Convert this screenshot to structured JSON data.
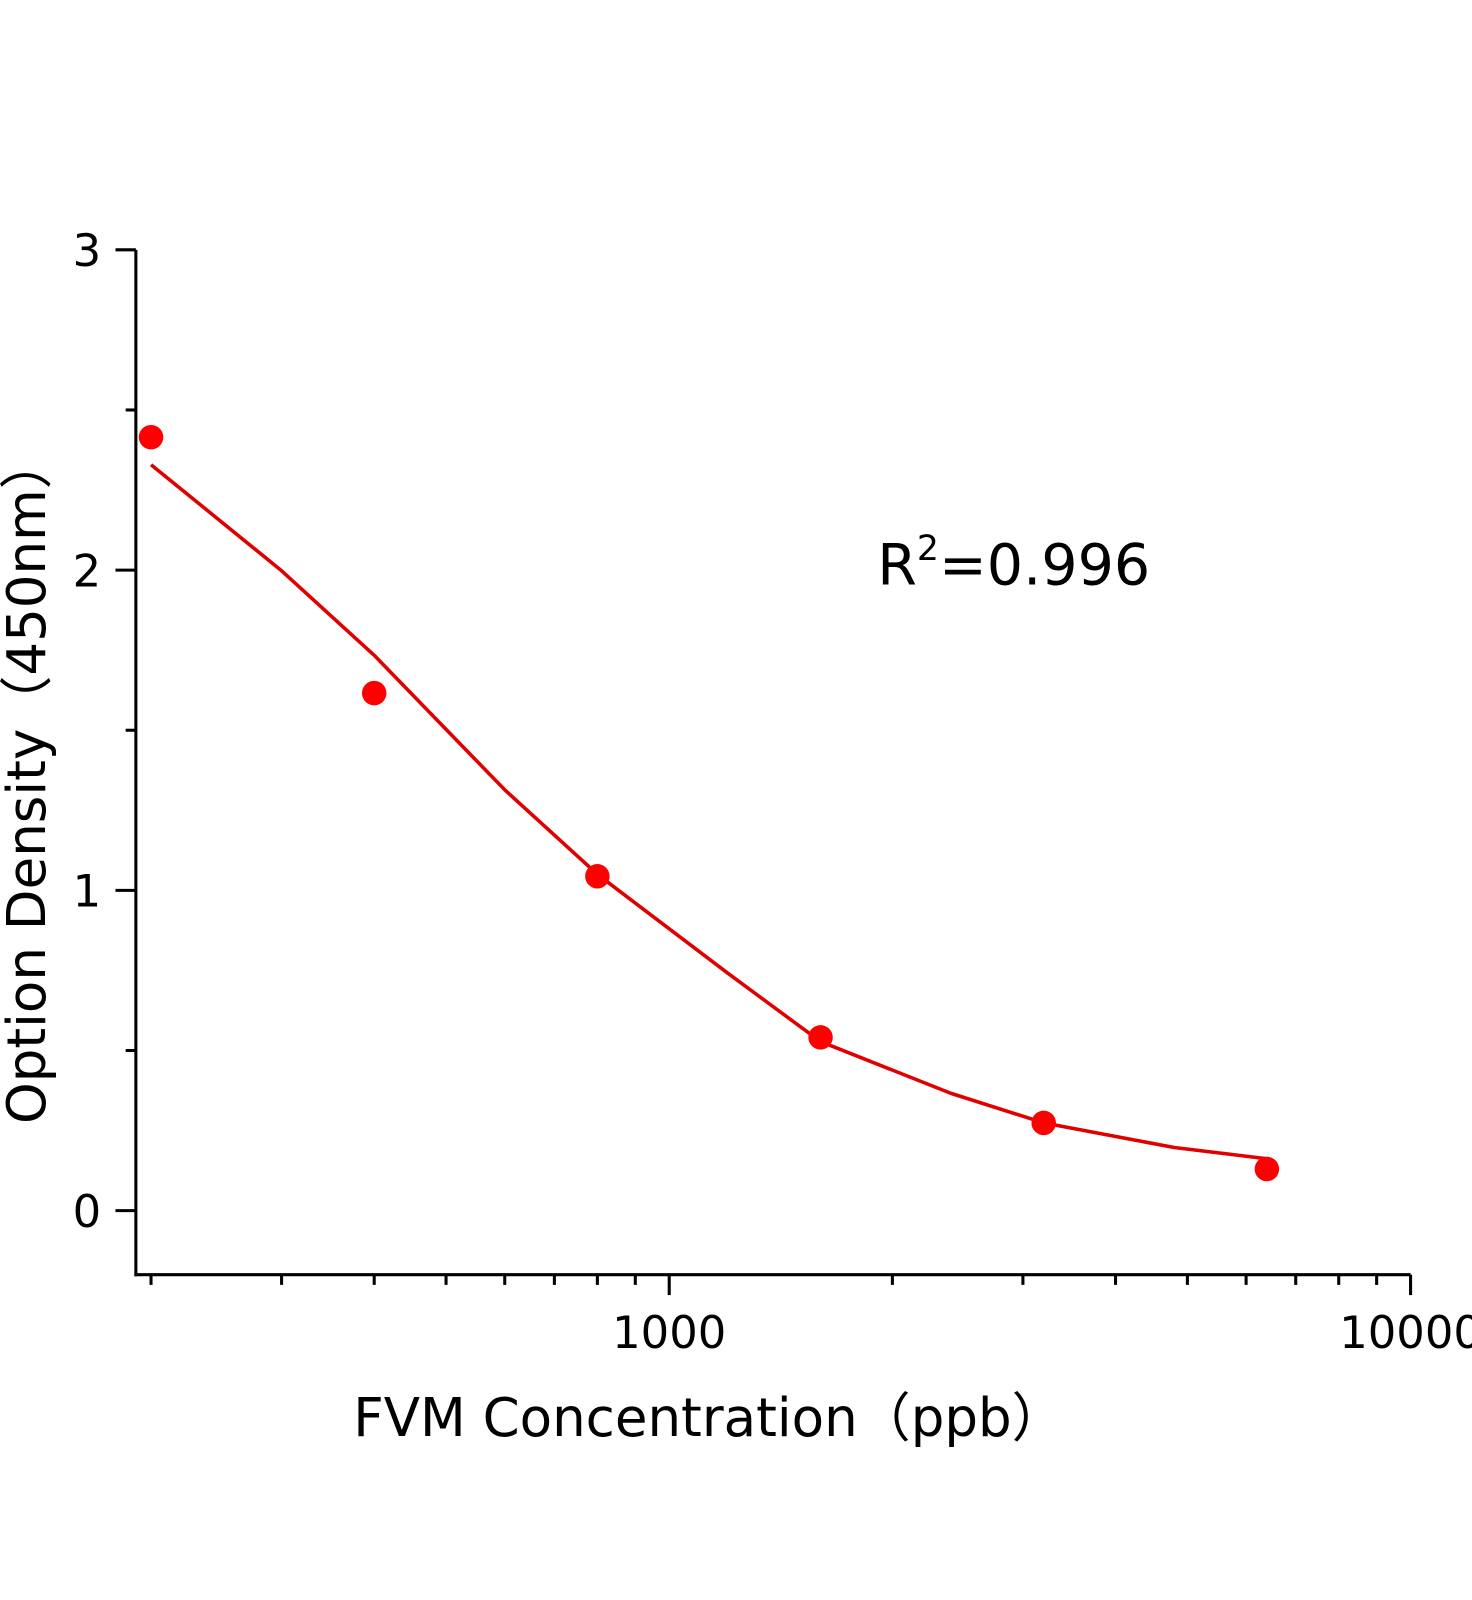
{
  "chart_data": {
    "type": "scatter",
    "xlabel": "FVM Concentration（ppb）",
    "ylabel": "Option Density（450nm）",
    "annotation": {
      "base": "R",
      "superscript": "2",
      "text": "=0.996"
    },
    "xscale": "log",
    "xlim": [
      190.8,
      10000
    ],
    "xticks": [
      1000,
      10000
    ],
    "xminorticks": [
      200,
      300,
      400,
      500,
      600,
      700,
      800,
      900,
      2000,
      3000,
      4000,
      5000,
      6000,
      7000,
      8000,
      9000
    ],
    "ylim": [
      -0.2,
      3
    ],
    "yticks": [
      0,
      1,
      2,
      3
    ],
    "yminorticks": [
      0.5,
      1.5,
      2.5
    ],
    "series": [
      {
        "name": "data",
        "kind": "points",
        "color": "#ff0000",
        "x": [
          200,
          400,
          800,
          1600,
          3200,
          6400
        ],
        "values": [
          2.415,
          1.616,
          1.044,
          0.541,
          0.274,
          0.13
        ]
      },
      {
        "name": "fit",
        "kind": "line",
        "color": "#e00000",
        "x": [
          200,
          300,
          400,
          600,
          800,
          1200,
          1600,
          2400,
          3200,
          4800,
          6400
        ],
        "values": [
          2.329,
          1.998,
          1.734,
          1.314,
          1.05,
          0.741,
          0.528,
          0.366,
          0.274,
          0.197,
          0.162
        ]
      }
    ]
  }
}
